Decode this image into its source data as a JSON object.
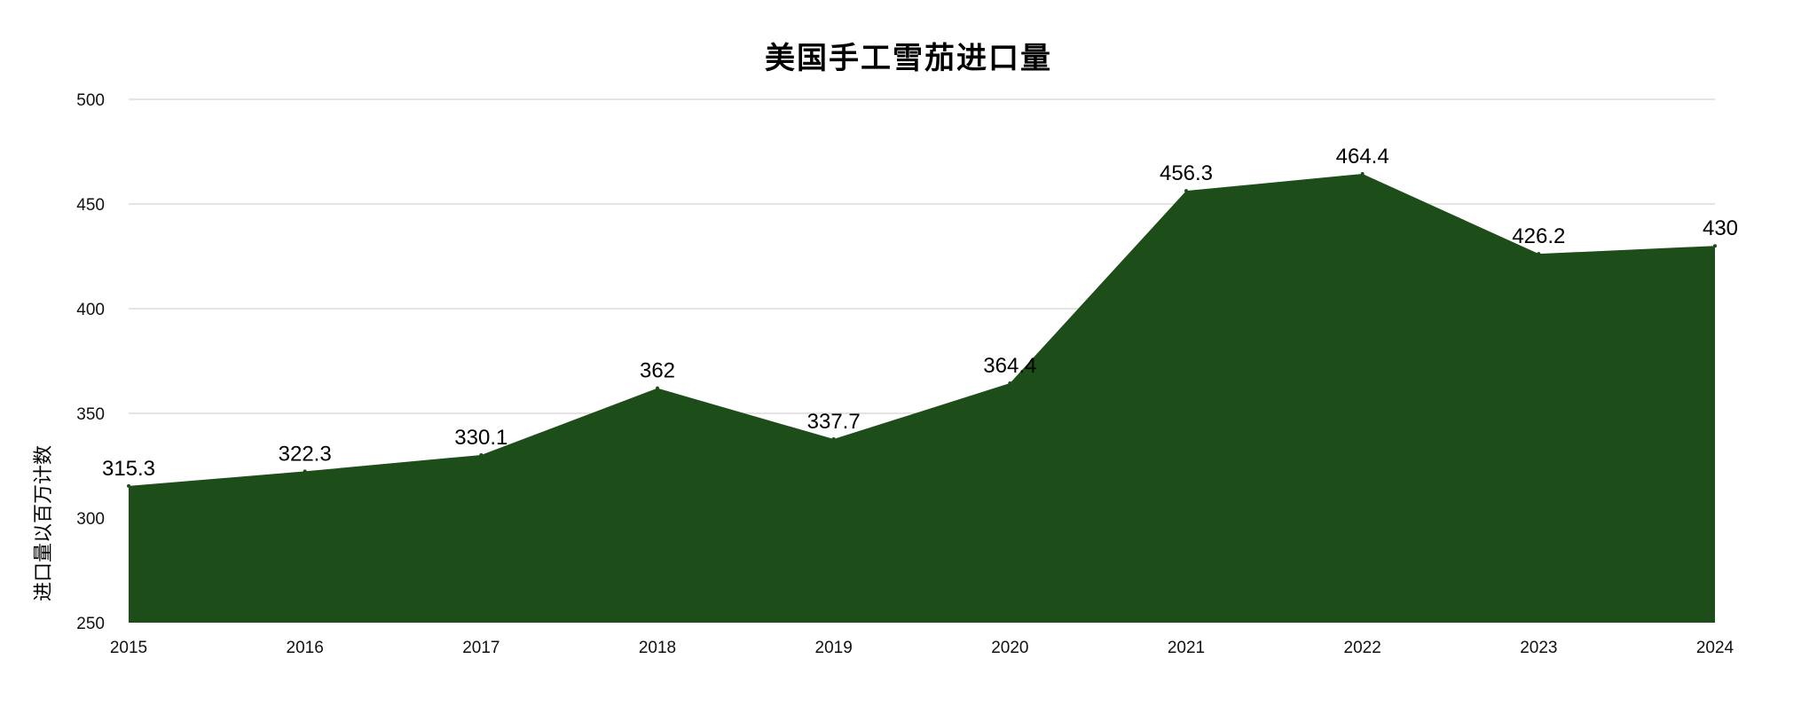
{
  "chart_data": {
    "type": "area",
    "title": "美国手工雪茄进口量",
    "xlabel": "",
    "ylabel": "进口量以百万计数",
    "x": [
      "2015",
      "2016",
      "2017",
      "2018",
      "2019",
      "2020",
      "2021",
      "2022",
      "2023",
      "2024"
    ],
    "values": [
      315.3,
      322.3,
      330.1,
      362,
      337.7,
      364.4,
      456.3,
      464.4,
      426.2,
      430
    ],
    "data_labels": [
      "315.3",
      "322.3",
      "330.1",
      "362",
      "337.7",
      "364.4",
      "456.3",
      "464.4",
      "426.2",
      "430"
    ],
    "ylim": [
      250,
      500
    ],
    "yticks": [
      "250",
      "300",
      "350",
      "400",
      "450",
      "500"
    ],
    "grid": true,
    "legend": "none",
    "colors": {
      "area_fill": "#1d4d19",
      "grid": "#d4d4d4"
    }
  }
}
